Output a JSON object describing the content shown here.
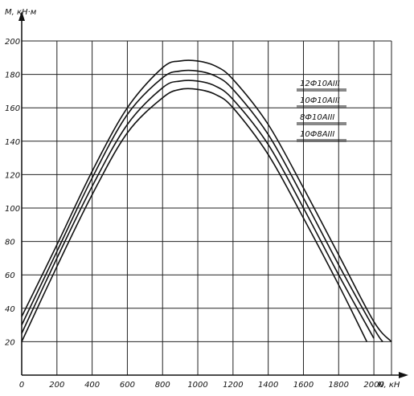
{
  "chart_data": {
    "type": "line",
    "xlabel": "N, кН",
    "ylabel": "M, кН·м",
    "xlim": [
      0,
      2100
    ],
    "ylim": [
      0,
      200
    ],
    "xticks": [
      0,
      200,
      400,
      600,
      800,
      1000,
      1200,
      1400,
      1600,
      1800,
      2000
    ],
    "yticks": [
      20,
      40,
      60,
      80,
      100,
      120,
      140,
      160,
      180,
      200
    ],
    "grid": true,
    "legend_position": "top-right",
    "legend": [
      "12Ф10АIII",
      "10Ф10АIII",
      "8Ф10АIII",
      "10Ф8АIII"
    ],
    "series": [
      {
        "name": "12Ф10АIII",
        "x": [
          0,
          200,
          400,
          600,
          800,
          900,
          1000,
          1100,
          1200,
          1400,
          1600,
          1800,
          2000,
          2100
        ],
        "y": [
          35,
          78,
          122,
          160,
          184,
          188,
          188,
          185,
          177,
          150,
          112,
          72,
          32,
          20
        ]
      },
      {
        "name": "10Ф10АIII",
        "x": [
          0,
          200,
          400,
          600,
          800,
          900,
          1000,
          1100,
          1200,
          1400,
          1600,
          1800,
          2000,
          2050
        ],
        "y": [
          30,
          74,
          118,
          156,
          178,
          182,
          182,
          179,
          171,
          144,
          106,
          66,
          28,
          20
        ]
      },
      {
        "name": "8Ф10АIII",
        "x": [
          0,
          200,
          400,
          600,
          800,
          900,
          1000,
          1100,
          1200,
          1400,
          1600,
          1800,
          2000
        ],
        "y": [
          25,
          70,
          113,
          150,
          172,
          176,
          176,
          173,
          165,
          138,
          100,
          60,
          22
        ]
      },
      {
        "name": "10Ф8АIII",
        "x": [
          0,
          200,
          400,
          600,
          800,
          900,
          1000,
          1100,
          1200,
          1400,
          1600,
          1800,
          1960
        ],
        "y": [
          20,
          65,
          108,
          145,
          166,
          171,
          171,
          168,
          160,
          132,
          94,
          54,
          20
        ]
      }
    ]
  }
}
